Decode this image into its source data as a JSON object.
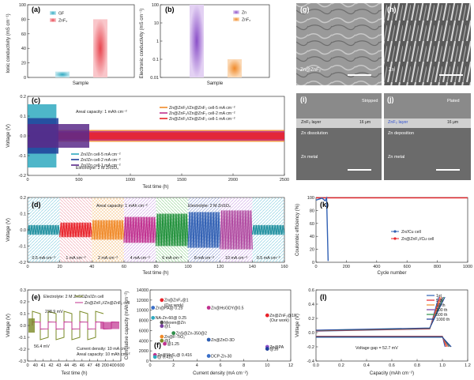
{
  "colors": {
    "gf": "#5bbfd0",
    "znf2": "#e8454f",
    "zn_b": "#9b6bd0",
    "znf2_b": "#f39a4a",
    "red": "#e8232a",
    "blue": "#2f5fb3",
    "olive": "#7a8a25",
    "magenta": "#c0308e"
  },
  "chart_data": [
    {
      "panel": "a",
      "type": "bar",
      "ylabel": "Ionic conductivity (mS cm⁻¹)",
      "xlabel": "Sample",
      "ylim": [
        0,
        100
      ],
      "yticks": [
        "0",
        "20",
        "40",
        "60",
        "80",
        "100"
      ],
      "series": [
        {
          "name": "GF",
          "value": 8
        },
        {
          "name": "ZnF₂",
          "value": 80
        }
      ]
    },
    {
      "panel": "b",
      "type": "bar",
      "ylabel": "Electronic conductivity (mS cm⁻¹)",
      "xlabel": "Sample",
      "ylim": [
        0.01,
        100
      ],
      "yscale": "log",
      "yticks": [
        "0.01",
        "0.1",
        "1",
        "10",
        "100"
      ],
      "series": [
        {
          "name": "Zn",
          "value": 100
        },
        {
          "name": "ZnF₂",
          "value": 0.1
        }
      ]
    },
    {
      "panel": "c",
      "type": "line",
      "xlabel": "Test time (h)",
      "ylabel": "Voltage (V)",
      "xlim": [
        0,
        2500
      ],
      "ylim": [
        -0.2,
        0.2
      ],
      "xticks": [
        "0",
        "500",
        "1000",
        "1500",
        "2000",
        "2500"
      ],
      "yticks": [
        "-0.2",
        "-0.1",
        "0.0",
        "0.1",
        "0.2"
      ],
      "annotations": [
        "Areal capacity: 1 mAh cm⁻²",
        "Electrolyte: 2 M ZnSO₄"
      ],
      "series": [
        {
          "name": "Zn@ZnF₂//Zn@ZnF₂ cell-5 mA cm⁻²",
          "end_h": 2500
        },
        {
          "name": "Zn@ZnF₂//Zn@ZnF₂ cell-2 mA cm⁻²",
          "end_h": 2500
        },
        {
          "name": "Zn@ZnF₂//Zn@ZnF₂ cell-1 mA cm⁻²",
          "end_h": 2500
        },
        {
          "name": "Zn//Zn cell-5 mA cm⁻²",
          "end_h": 280
        },
        {
          "name": "Zn//Zn cell-2 mA cm⁻²",
          "end_h": 300
        },
        {
          "name": "Zn//Zn cell-1 mA cm⁻²",
          "end_h": 600
        }
      ]
    },
    {
      "panel": "d",
      "type": "line",
      "xlabel": "Test time (h)",
      "ylabel": "Voltage (V)",
      "xlim": [
        0,
        160
      ],
      "ylim": [
        -0.2,
        0.2
      ],
      "xticks": [
        "0",
        "20",
        "40",
        "60",
        "80",
        "100",
        "120",
        "140",
        "160"
      ],
      "yticks": [
        "-0.2",
        "-0.1",
        "0.0",
        "0.1",
        "0.2"
      ],
      "annotations": [
        "Areal capacity: 1 mAh cm⁻²",
        "Electrolyte: 2 M ZnSO₄"
      ],
      "segments": [
        {
          "label": "0.5 mA cm⁻²",
          "amp": 0.03
        },
        {
          "label": "1 mA cm⁻²",
          "amp": 0.045
        },
        {
          "label": "2 mA cm⁻²",
          "amp": 0.06
        },
        {
          "label": "4 mA cm⁻²",
          "amp": 0.08
        },
        {
          "label": "6 mA cm⁻²",
          "amp": 0.1
        },
        {
          "label": "8 mA cm⁻²",
          "amp": 0.11
        },
        {
          "label": "10 mA cm⁻²",
          "amp": 0.12
        },
        {
          "label": "0.5 mA cm⁻²",
          "amp": 0.03
        }
      ]
    },
    {
      "panel": "e",
      "type": "line",
      "xlabel": "Test time (h)",
      "ylabel": "Voltage (V)",
      "xlim": [
        0,
        600
      ],
      "ylim": [
        -0.3,
        0.3
      ],
      "xticks": [
        "0",
        "40",
        "41",
        "42",
        "43",
        "44",
        "45",
        "46",
        "47",
        "48",
        "200",
        "400",
        "600"
      ],
      "yticks": [
        "-0.3",
        "-0.2",
        "-0.1",
        "0.0",
        "0.1",
        "0.2",
        "0.3"
      ],
      "annotations": [
        "Electrolyte: 2 M ZnSO₄",
        "238.9 mV",
        "56.4 mV",
        "Current density: 10 mA cm⁻²",
        "Areal capacity: 10 mAh cm⁻²"
      ],
      "series": [
        {
          "name": "Zn//Zn cell"
        },
        {
          "name": "Zn@ZnF₂//Zn@ZnF₂ cell"
        }
      ]
    },
    {
      "panel": "f",
      "type": "scatter",
      "xlabel": "Current density (mA cm⁻²)",
      "ylabel": "Cumulative capacity (mAh cm⁻²)",
      "xlim": [
        0,
        12
      ],
      "ylim": [
        0,
        14000
      ],
      "xticks": [
        "0",
        "2",
        "4",
        "6",
        "8",
        "10",
        "12"
      ],
      "yticks": [
        "0",
        "2000",
        "4000",
        "6000",
        "8000",
        "10000",
        "12000",
        "14000"
      ],
      "points": [
        {
          "label": "Zn@ZnF₂@1",
          "note": "(Our work)",
          "x": 1,
          "y": 12000
        },
        {
          "label": "Zn@PA@ 0.25",
          "x": 0.25,
          "y": 10500
        },
        {
          "label": "NA-Zn-60@ 0.25",
          "x": 0.25,
          "y": 8500
        },
        {
          "label": "Mexen@Zn",
          "x": 1,
          "y": 7600
        },
        {
          "label": "@1",
          "x": 1,
          "y": 6900
        },
        {
          "label": "ZnS@Zn-350@2",
          "x": 2,
          "y": 5500
        },
        {
          "label": "Zn@HsGDY@0.5",
          "x": 5,
          "y": 10500
        },
        {
          "label": "Zn@ZnF₂@10",
          "note": "(Our work)",
          "x": 10,
          "y": 9000
        },
        {
          "label": "Zn@F-TiO₂",
          "x": 1,
          "y": 4800
        },
        {
          "label": "@1",
          "x": 1,
          "y": 4000
        },
        {
          "label": "Zn@ZnO-3D",
          "x": 5,
          "y": 4200
        },
        {
          "label": "@1.25",
          "x": 1.25,
          "y": 3400
        },
        {
          "label": "Zn@PA",
          "x": 10,
          "y": 2800
        },
        {
          "label": "@10",
          "x": 10,
          "y": 2400
        },
        {
          "label": "Zn@MoS₂@ 0.416",
          "x": 0.416,
          "y": 1200
        },
        {
          "label": "DCP-Zn-30",
          "x": 5,
          "y": 1000
        },
        {
          "label": "@ 0.416",
          "x": 0.416,
          "y": 800
        }
      ]
    },
    {
      "panel": "k",
      "type": "scatter",
      "xlabel": "Cycle number",
      "ylabel": "Coulombic efficiency (%)",
      "xlim": [
        0,
        1000
      ],
      "ylim": [
        0,
        100
      ],
      "xticks": [
        "0",
        "200",
        "400",
        "600",
        "800",
        "1000"
      ],
      "yticks": [
        "0",
        "20",
        "40",
        "60",
        "80",
        "100"
      ],
      "series": [
        {
          "name": "Zn//Cu cell",
          "fail_cycle": 80
        },
        {
          "name": "Zn@ZnF₂//Cu cell",
          "value": 99.5
        }
      ]
    },
    {
      "panel": "l",
      "type": "line",
      "xlabel": "Capacity (mAh cm⁻²)",
      "ylabel": "Voltage (V)",
      "xlim": [
        0,
        1.2
      ],
      "ylim": [
        -0.4,
        0.6
      ],
      "xticks": [
        "0.0",
        "0.2",
        "0.4",
        "0.6",
        "0.8",
        "1.0",
        "1.2"
      ],
      "yticks": [
        "-0.4",
        "-0.2",
        "0.0",
        "0.2",
        "0.4",
        "0.6"
      ],
      "annotations": [
        "Voltage gap = 52.7 mV"
      ],
      "series": [
        {
          "name": "1st"
        },
        {
          "name": "5 th"
        },
        {
          "name": "10 th"
        },
        {
          "name": "100 th"
        },
        {
          "name": "500 th"
        },
        {
          "name": "1000 th"
        }
      ]
    }
  ],
  "images": {
    "g": {
      "label": "(g)",
      "caption": "Zn@ZnF₂"
    },
    "h": {
      "label": "(h)",
      "caption": "Zn"
    },
    "i": {
      "label": "(i)",
      "title": "Stripped",
      "layer": "ZnF₂ layer",
      "thickness": "16 μm",
      "process": "Zn dissolution",
      "base": "Zn metal"
    },
    "j": {
      "label": "(j)",
      "title": "Plated",
      "layer": "ZnF₂ layer",
      "thickness": "16 μm",
      "process": "Zn deposition",
      "base": "Zn metal"
    }
  },
  "panel_labels": {
    "a": "(a)",
    "b": "(b)",
    "c": "(c)",
    "d": "(d)",
    "e": "(e)",
    "f": "(f)",
    "k": "(k)",
    "l": "(l)"
  }
}
